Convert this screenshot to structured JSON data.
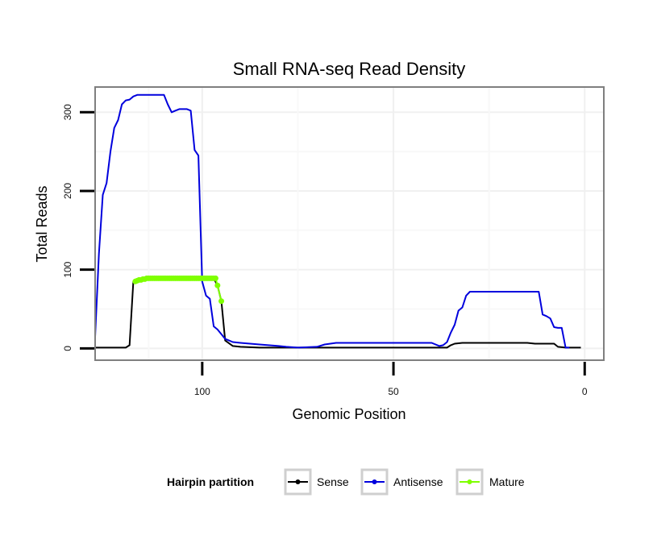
{
  "chart_data": {
    "type": "line",
    "title": "Small RNA-seq Read Density",
    "xlabel": "Genomic Position",
    "ylabel": "Total Reads",
    "xlim": [
      128,
      -5
    ],
    "ylim": [
      -15,
      332
    ],
    "x_reversed": true,
    "grid": true,
    "xticks": [
      100,
      50,
      0
    ],
    "yticks": [
      0,
      100,
      200,
      300
    ],
    "legend": {
      "title": "Hairpin partition",
      "position": "bottom",
      "entries": [
        "Sense",
        "Antisense",
        "Mature"
      ]
    },
    "colors": {
      "Sense": "#000000",
      "Antisense": "#0000dd",
      "Mature": "#7fff00"
    },
    "series": [
      {
        "name": "Sense",
        "x": [
          128,
          122,
          120,
          119,
          118,
          117,
          112,
          105,
          100,
          97,
          96,
          95,
          94,
          92,
          90,
          85,
          80,
          70,
          60,
          50,
          40,
          36,
          35,
          34,
          32,
          30,
          25,
          20,
          15,
          13,
          10,
          8,
          7,
          5,
          3,
          2,
          1
        ],
        "y": [
          1,
          1,
          1,
          4,
          85,
          87,
          89,
          89,
          89,
          89,
          80,
          60,
          10,
          3,
          2,
          1,
          1,
          1,
          1,
          1,
          1,
          1,
          4,
          6,
          7,
          7,
          7,
          7,
          7,
          6,
          6,
          6,
          2,
          1,
          1,
          1,
          1
        ]
      },
      {
        "name": "Antisense",
        "x": [
          128,
          127,
          126,
          125,
          124,
          123,
          122,
          121,
          120,
          119,
          118,
          117,
          116,
          115,
          113,
          110,
          109,
          108,
          107,
          106,
          105,
          104,
          103,
          102,
          101,
          100,
          99,
          98,
          97,
          96,
          95,
          94,
          93,
          92,
          90,
          85,
          80,
          78,
          75,
          70,
          68,
          65,
          60,
          55,
          50,
          45,
          40,
          38,
          37,
          36,
          35,
          34,
          33,
          32,
          31,
          30,
          25,
          20,
          15,
          14,
          13,
          12,
          11,
          10,
          9,
          8,
          7,
          6,
          5,
          4
        ],
        "y": [
          15,
          120,
          195,
          210,
          250,
          280,
          290,
          310,
          315,
          316,
          320,
          322,
          322,
          322,
          322,
          322,
          310,
          300,
          302,
          304,
          304,
          304,
          302,
          252,
          245,
          85,
          67,
          63,
          28,
          24,
          18,
          12,
          10,
          8,
          7,
          5,
          3,
          2,
          1,
          2,
          5,
          7,
          7,
          7,
          7,
          7,
          7,
          3,
          4,
          8,
          20,
          30,
          48,
          52,
          67,
          72,
          72,
          72,
          72,
          72,
          72,
          72,
          43,
          41,
          38,
          27,
          26,
          26,
          1,
          1
        ]
      },
      {
        "name": "Mature",
        "x": [
          117.5,
          117,
          116.5,
          116,
          115.5,
          115,
          114.5,
          114,
          113.5,
          113,
          112.5,
          112,
          111.5,
          111,
          110.5,
          110,
          109.5,
          109,
          108.5,
          108,
          107.5,
          107,
          106.5,
          106,
          105.5,
          105,
          104.5,
          104,
          103.5,
          103,
          102.5,
          102,
          101.5,
          101,
          100.5,
          100,
          99.5,
          99,
          98.5,
          98,
          97.5,
          97,
          96.5,
          96,
          95
        ],
        "y": [
          85,
          86,
          87,
          87,
          88,
          88,
          89,
          89,
          89,
          89,
          89,
          89,
          89,
          89,
          89,
          89,
          89,
          89,
          89,
          89,
          89,
          89,
          89,
          89,
          89,
          89,
          89,
          89,
          89,
          89,
          89,
          89,
          89,
          89,
          89,
          89,
          89,
          89,
          89,
          89,
          89,
          89,
          89,
          80,
          60
        ]
      }
    ]
  }
}
